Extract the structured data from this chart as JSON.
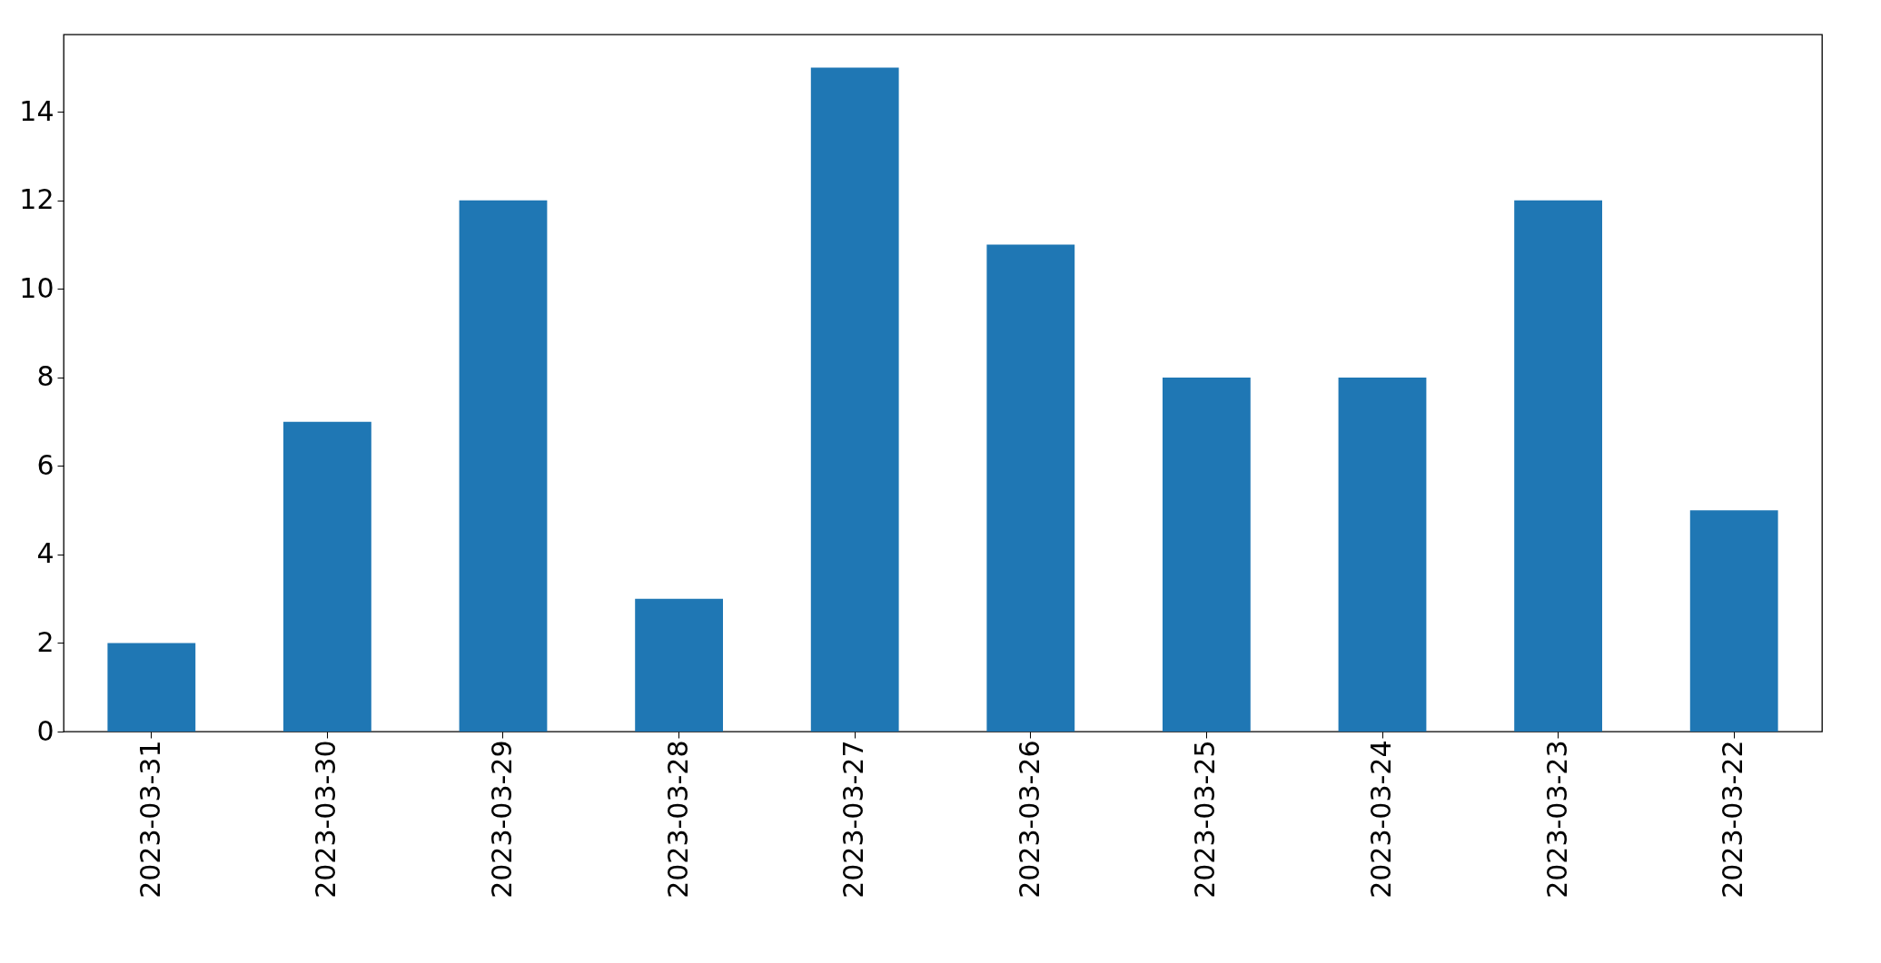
{
  "chart_data": {
    "type": "bar",
    "categories": [
      "2023-03-31",
      "2023-03-30",
      "2023-03-29",
      "2023-03-28",
      "2023-03-27",
      "2023-03-26",
      "2023-03-25",
      "2023-03-24",
      "2023-03-23",
      "2023-03-22"
    ],
    "values": [
      2,
      7,
      12,
      3,
      15,
      11,
      8,
      8,
      12,
      5
    ],
    "color": "#1f77b4",
    "ylim": [
      0,
      15.75
    ],
    "yticks": [
      0,
      2,
      4,
      6,
      8,
      10,
      12,
      14
    ],
    "grid": false
  }
}
